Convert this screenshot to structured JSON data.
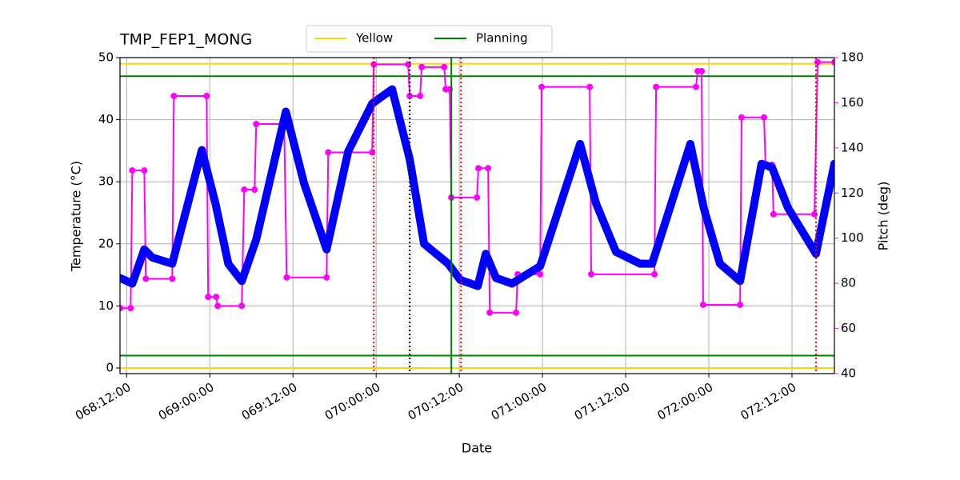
{
  "chart_data": {
    "type": "line",
    "title": "TMP_FEP1_MONG",
    "x_label": "Date",
    "y_label": "Temperature (°C)",
    "y2_label": "Pitch (deg)",
    "y2_color": "magenta",
    "xlim": [
      68.46,
      72.755
    ],
    "ylim": [
      -0.9,
      50
    ],
    "y2lim": [
      40,
      180
    ],
    "xticks": [
      {
        "value": 68.5,
        "label": "068:12:00"
      },
      {
        "value": 69.0,
        "label": "069:00:00"
      },
      {
        "value": 69.5,
        "label": "069:12:00"
      },
      {
        "value": 70.0,
        "label": "070:00:00"
      },
      {
        "value": 70.5,
        "label": "070:12:00"
      },
      {
        "value": 71.0,
        "label": "071:00:00"
      },
      {
        "value": 71.5,
        "label": "071:12:00"
      },
      {
        "value": 72.0,
        "label": "072:00:00"
      },
      {
        "value": 72.5,
        "label": "072:12:00"
      }
    ],
    "yticks": [
      0,
      10,
      20,
      30,
      40,
      50
    ],
    "y2ticks": [
      40,
      60,
      80,
      100,
      120,
      140,
      160,
      180
    ],
    "grid": true,
    "series": [
      {
        "color": "blue",
        "x": [
          68.46,
          68.534,
          68.606,
          68.654,
          68.774,
          68.952,
          69.034,
          69.111,
          69.192,
          69.279,
          69.457,
          69.567,
          69.702,
          69.832,
          69.976,
          70.096,
          70.202,
          70.288,
          70.433,
          70.505,
          70.611,
          70.659,
          70.721,
          70.817,
          70.986,
          71.226,
          71.322,
          71.442,
          71.587,
          71.659,
          71.889,
          71.971,
          72.067,
          72.188,
          72.317,
          72.38,
          72.476,
          72.644,
          72.755
        ],
        "values": [
          14.5,
          13.6,
          19.1,
          17.8,
          16.8,
          35.1,
          26.5,
          16.8,
          14.0,
          20.7,
          41.3,
          29.7,
          19.1,
          34.9,
          42.6,
          44.9,
          33.6,
          20.0,
          16.8,
          14.2,
          13.2,
          18.4,
          14.5,
          13.6,
          16.4,
          36.1,
          26.5,
          18.7,
          16.8,
          16.8,
          36.1,
          25.6,
          16.8,
          14.0,
          32.9,
          32.3,
          25.8,
          18.4,
          32.9
        ]
      },
      {
        "color": "magenta",
        "axis": "y2",
        "x": [
          68.462,
          68.524,
          68.534,
          68.606,
          68.615,
          68.774,
          68.784,
          68.981,
          68.99,
          69.038,
          69.048,
          69.192,
          69.207,
          69.269,
          69.279,
          69.447,
          69.462,
          69.702,
          69.712,
          69.976,
          69.986,
          70.192,
          70.202,
          70.264,
          70.274,
          70.409,
          70.418,
          70.442,
          70.452,
          70.606,
          70.615,
          70.673,
          70.683,
          70.841,
          70.851,
          70.986,
          70.995,
          71.284,
          71.293,
          71.673,
          71.683,
          71.923,
          71.933,
          71.957,
          71.966,
          72.188,
          72.197,
          72.332,
          72.341,
          72.38,
          72.389,
          72.635,
          72.654,
          72.755
        ],
        "values": [
          69,
          69,
          130,
          130,
          82,
          82,
          163,
          163,
          74,
          74,
          70,
          70,
          121.5,
          121.5,
          150.6,
          150.6,
          82.6,
          82.6,
          138,
          138,
          177,
          177,
          163,
          163,
          175.8,
          175.8,
          166,
          166,
          118,
          118,
          131,
          131,
          67,
          67,
          84,
          84,
          167,
          167,
          84,
          84,
          167,
          167,
          174,
          174,
          70.5,
          70.5,
          153.5,
          153.5,
          132.5,
          132.5,
          110.6,
          110.6,
          178,
          178
        ]
      }
    ],
    "limit_lines": [
      {
        "name": "Yellow",
        "color": "gold",
        "values": [
          0,
          49
        ]
      },
      {
        "name": "Planning",
        "color": "green",
        "values": [
          2,
          47
        ]
      }
    ],
    "vlines": [
      {
        "x": 69.986,
        "color": "red",
        "dash": "dotted"
      },
      {
        "x": 70.202,
        "color": "black",
        "dash": "dotted"
      },
      {
        "x": 70.452,
        "color": "green",
        "dash": "solid"
      },
      {
        "x": 70.51,
        "color": "red",
        "dash": "dotted"
      },
      {
        "x": 72.644,
        "color": "red",
        "dash": "dotted"
      }
    ],
    "legend": "upper center"
  }
}
